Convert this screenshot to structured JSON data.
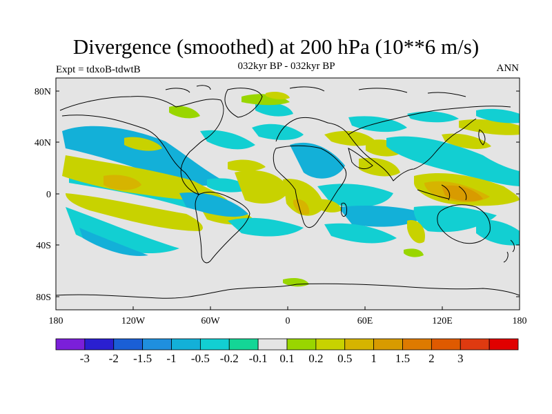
{
  "title": "Divergence (smoothed) at 200 hPa (10**6 m/s)",
  "subtitle": "032kyr BP - 032kyr BP",
  "left_label": "Expt = tdxoB-tdwtB",
  "right_label": "ANN",
  "lat_ticks": [
    "80N",
    "40N",
    "0",
    "40S",
    "80S"
  ],
  "lon_ticks": [
    "180",
    "120W",
    "60W",
    "0",
    "60E",
    "120E",
    "180"
  ],
  "colorbar": {
    "colors": [
      "#7b1fd9",
      "#2a1fd0",
      "#1a5fd6",
      "#1f8fde",
      "#13b0d8",
      "#12cfd2",
      "#14d696",
      "#e4e4e4",
      "#99d600",
      "#c8d200",
      "#d6b400",
      "#d89b00",
      "#de7a00",
      "#df5a00",
      "#df3a10",
      "#e00000"
    ],
    "labels": [
      "-3",
      "-2",
      "-1.5",
      "-1",
      "-0.5",
      "-0.2",
      "-0.1",
      "0.1",
      "0.2",
      "0.5",
      "1",
      "1.5",
      "2",
      "3"
    ]
  }
}
